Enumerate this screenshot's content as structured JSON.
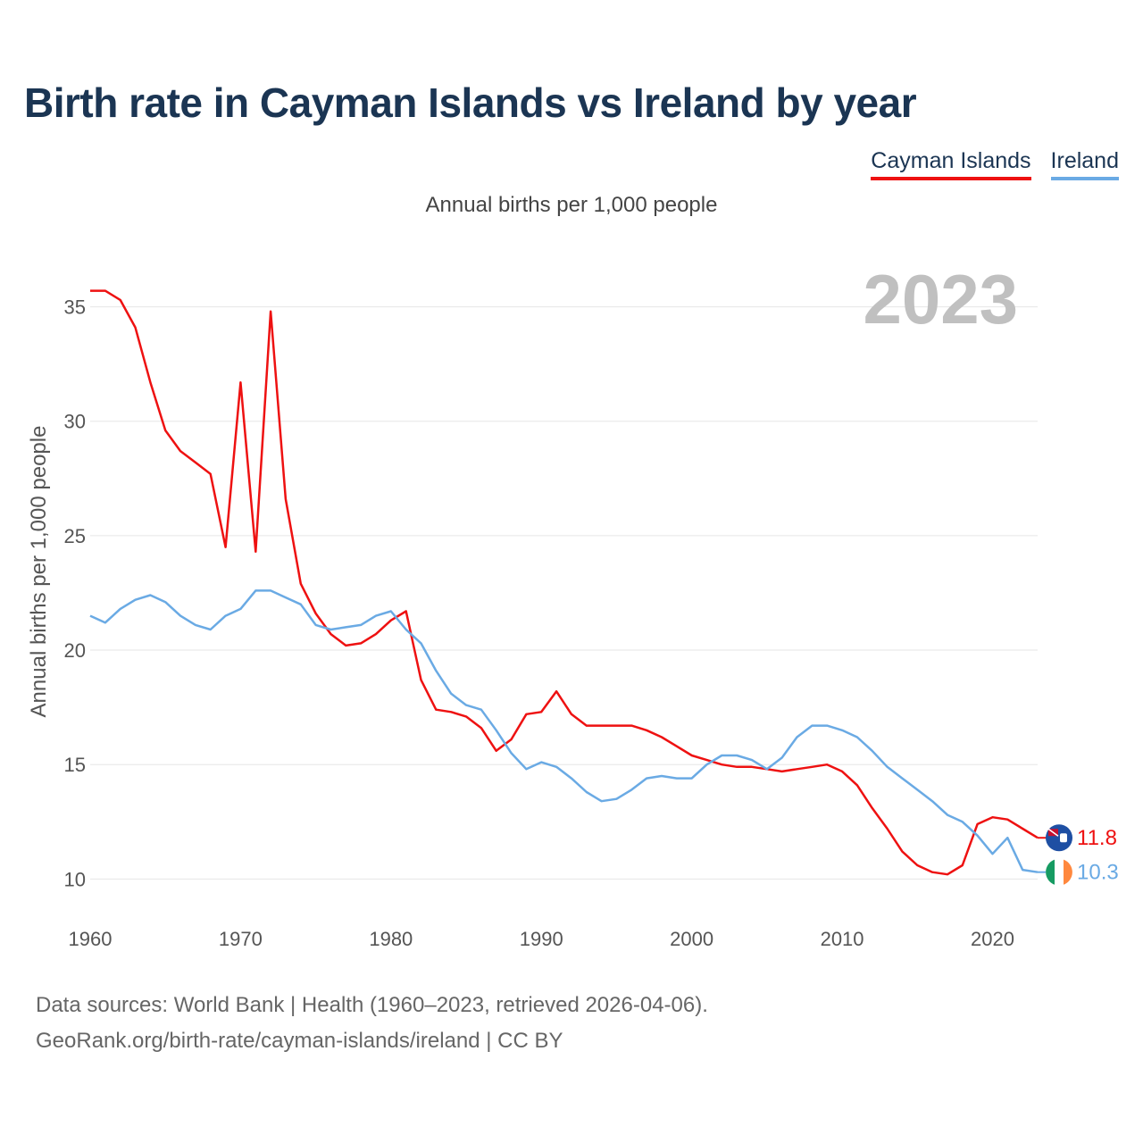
{
  "title": "Birth rate in Cayman Islands vs Ireland by year",
  "subtitle": "Annual births per 1,000 people",
  "legend": [
    "Cayman Islands",
    "Ireland"
  ],
  "source": {
    "line1": "Data sources: World Bank | Health (1960–2023, retrieved 2026-04-06).",
    "line2": "GeoRank.org/birth-rate/cayman-islands/ireland | CC BY"
  },
  "colors": {
    "cayman": "#ee1111",
    "ireland": "#6aaae4",
    "grid": "#e6e6e6",
    "year": "#c0c0c0",
    "tick": "#555555"
  },
  "chart_data": {
    "type": "line",
    "title": "Birth rate in Cayman Islands vs Ireland by year",
    "ylabel": "Annual births per 1,000 people",
    "xlabel": "",
    "year_label": "2023",
    "xlim": [
      1960,
      2023
    ],
    "ylim": [
      9,
      36.7
    ],
    "xticks": [
      1960,
      1970,
      1980,
      1990,
      2000,
      2010,
      2020
    ],
    "yticks": [
      10,
      15,
      20,
      25,
      30,
      35
    ],
    "x": [
      1960,
      1961,
      1962,
      1963,
      1964,
      1965,
      1966,
      1967,
      1968,
      1969,
      1970,
      1971,
      1972,
      1973,
      1974,
      1975,
      1976,
      1977,
      1978,
      1979,
      1980,
      1981,
      1982,
      1983,
      1984,
      1985,
      1986,
      1987,
      1988,
      1989,
      1990,
      1991,
      1992,
      1993,
      1994,
      1995,
      1996,
      1997,
      1998,
      1999,
      2000,
      2001,
      2002,
      2003,
      2004,
      2005,
      2006,
      2007,
      2008,
      2009,
      2010,
      2011,
      2012,
      2013,
      2014,
      2015,
      2016,
      2017,
      2018,
      2019,
      2020,
      2021,
      2022,
      2023
    ],
    "series": [
      {
        "name": "Cayman Islands",
        "end_label": "11.8",
        "values": [
          35.7,
          35.7,
          35.3,
          34.1,
          31.7,
          29.6,
          28.7,
          28.2,
          27.7,
          24.5,
          31.7,
          24.3,
          34.8,
          26.6,
          22.9,
          21.6,
          20.7,
          20.2,
          20.3,
          20.7,
          21.3,
          21.7,
          18.7,
          17.4,
          17.3,
          17.1,
          16.6,
          15.6,
          16.1,
          17.2,
          17.3,
          18.2,
          17.2,
          16.7,
          16.7,
          16.7,
          16.7,
          16.5,
          16.2,
          15.8,
          15.4,
          15.2,
          15.0,
          14.9,
          14.9,
          14.8,
          14.7,
          14.8,
          14.9,
          15.0,
          14.7,
          14.1,
          13.1,
          12.2,
          11.2,
          10.6,
          10.3,
          10.2,
          10.6,
          12.4,
          12.7,
          12.6,
          12.2,
          11.8
        ]
      },
      {
        "name": "Ireland",
        "end_label": "10.3",
        "values": [
          21.5,
          21.2,
          21.8,
          22.2,
          22.4,
          22.1,
          21.5,
          21.1,
          20.9,
          21.5,
          21.8,
          22.6,
          22.6,
          22.3,
          22.0,
          21.1,
          20.9,
          21.0,
          21.1,
          21.5,
          21.7,
          20.9,
          20.3,
          19.1,
          18.1,
          17.6,
          17.4,
          16.5,
          15.5,
          14.8,
          15.1,
          14.9,
          14.4,
          13.8,
          13.4,
          13.5,
          13.9,
          14.4,
          14.5,
          14.4,
          14.4,
          15.0,
          15.4,
          15.4,
          15.2,
          14.8,
          15.3,
          16.2,
          16.7,
          16.7,
          16.5,
          16.2,
          15.6,
          14.9,
          14.4,
          13.9,
          13.4,
          12.8,
          12.5,
          11.9,
          11.1,
          11.8,
          10.4,
          10.3
        ]
      }
    ]
  }
}
